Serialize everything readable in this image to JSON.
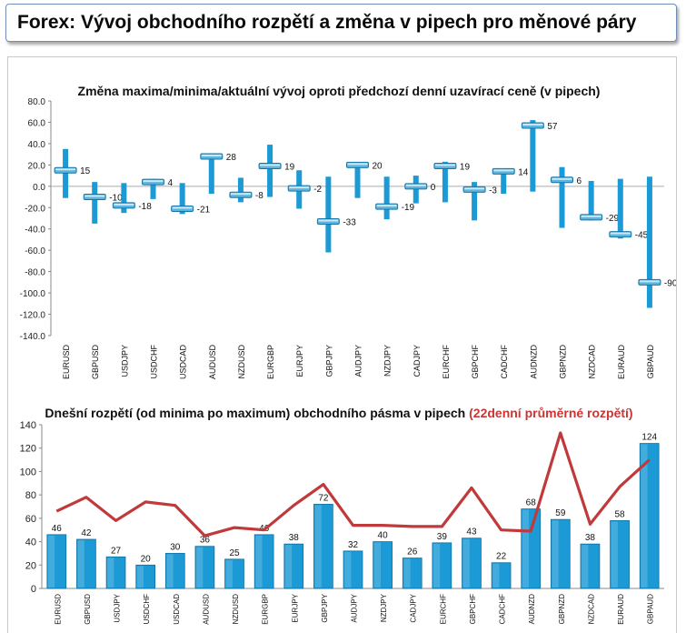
{
  "page": {
    "title": "Forex: Vývoj obchodního rozpětí a změna v pipech pro měnové páry"
  },
  "chart_data": [
    {
      "type": "range",
      "title": "Změna maxima/minima/aktuální vývoj oproti předchozí denní uzavírací ceně (v pipech)",
      "categories": [
        "EURUSD",
        "GBPUSD",
        "USDJPY",
        "USDCHF",
        "USDCAD",
        "AUDUSD",
        "NZDUSD",
        "EURGBP",
        "EURJPY",
        "GBPJPY",
        "AUDJPY",
        "NZDJPY",
        "CADJPY",
        "EURCHF",
        "GBPCHF",
        "CADCHF",
        "AUDNZD",
        "GBPNZD",
        "NZDCAD",
        "EURAUD",
        "GBPAUD"
      ],
      "high": [
        35,
        4,
        3,
        7,
        3,
        30,
        8,
        39,
        15,
        9,
        22,
        9,
        10,
        23,
        4,
        16,
        62,
        18,
        5,
        7,
        9
      ],
      "low": [
        -11,
        -35,
        -25,
        -12,
        -26,
        -7,
        -15,
        -10,
        -21,
        -62,
        -11,
        -31,
        -16,
        -15,
        -32,
        -7,
        -5,
        -39,
        -32,
        -49,
        -114
      ],
      "current": [
        15,
        -10,
        -18,
        4,
        -21,
        28,
        -8,
        19,
        -2,
        -33,
        20,
        -19,
        0,
        19,
        -3,
        14,
        57,
        6,
        -29,
        -45,
        -90
      ],
      "ylim": [
        -140,
        80
      ],
      "yticks": [
        "80.0",
        "60.0",
        "40.0",
        "20.0",
        "0.0",
        "-20.0",
        "-40.0",
        "-60.0",
        "-80.0",
        "-100.0",
        "-120.0",
        "-140.0"
      ],
      "bar_color": "#1b9ad6",
      "grid": false
    },
    {
      "type": "bar+line",
      "title": "Dnešní rozpětí (od minima po maximum) obchodního pásma v pipech",
      "title_highlight": "(22denní průměrné rozpětí)",
      "title_highlight_color": "#cc3333",
      "categories": [
        "EURUSD",
        "GBPUSD",
        "USDJPY",
        "USDCHF",
        "USDCAD",
        "AUDUSD",
        "NZDUSD",
        "EURGBP",
        "EURJPY",
        "GBPJPY",
        "AUDJPY",
        "NZDJPY",
        "CADJPY",
        "EURCHF",
        "GBPCHF",
        "CADCHF",
        "AUDNZD",
        "GBPNZD",
        "NZDCAD",
        "EURAUD",
        "GBPAUD"
      ],
      "series": [
        {
          "values": [
            46,
            42,
            27,
            20,
            30,
            36,
            25,
            46,
            38,
            72,
            32,
            40,
            26,
            39,
            43,
            22,
            68,
            59,
            38,
            58,
            124
          ],
          "color": "#1b9ad6"
        },
        {
          "values": [
            66,
            78,
            58,
            74,
            71,
            45,
            52,
            50,
            71,
            89,
            54,
            54,
            53,
            53,
            86,
            50,
            49,
            133,
            55,
            87,
            110
          ],
          "color": "#c0393b"
        }
      ],
      "ylim": [
        0,
        140
      ],
      "yticks": [
        "140",
        "120",
        "100",
        "80",
        "60",
        "40",
        "20",
        "0"
      ],
      "grid": false
    }
  ]
}
